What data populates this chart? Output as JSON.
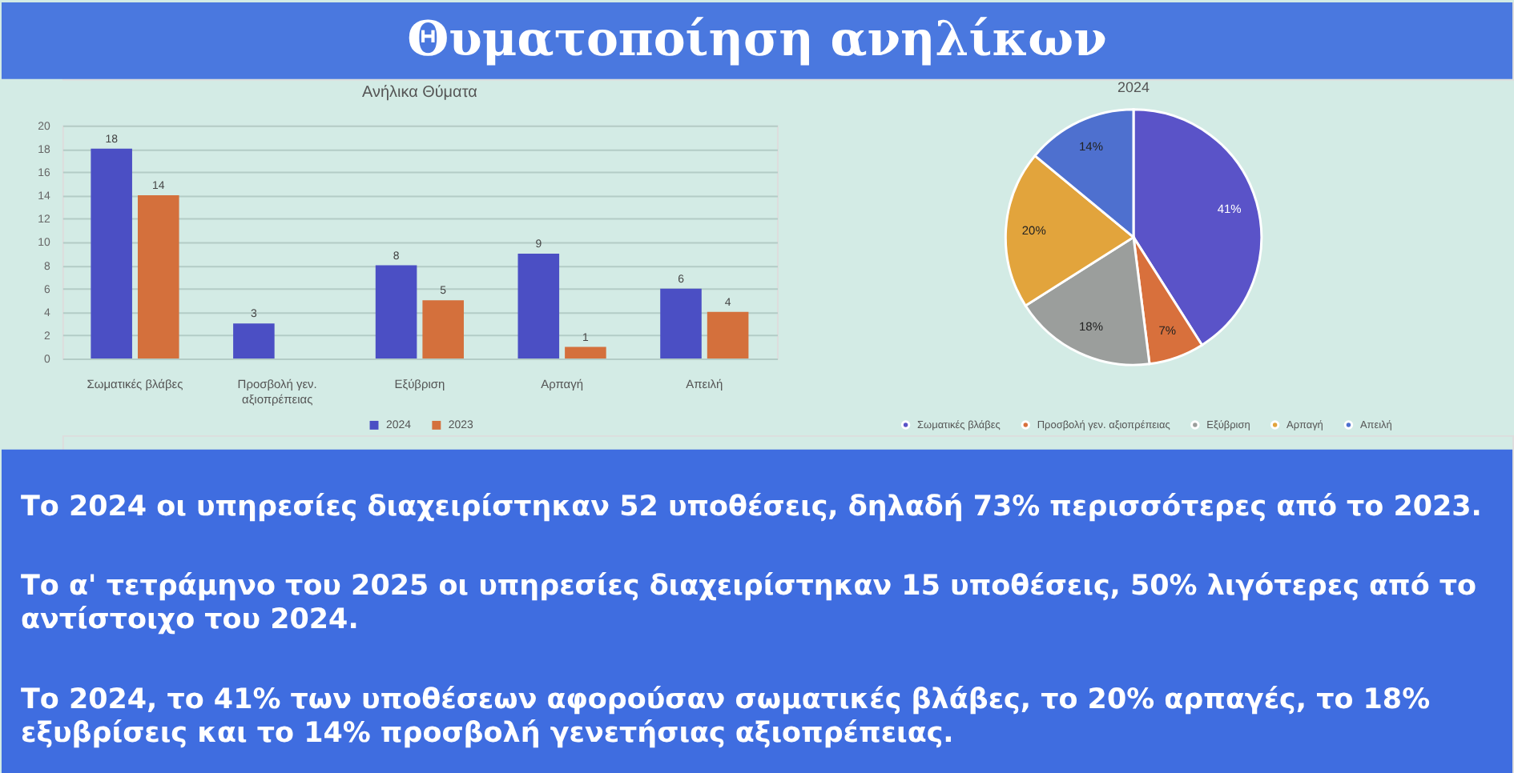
{
  "chart_data": [
    {
      "type": "other",
      "title": "Θυματοποίηση ανηλίκων"
    },
    {
      "type": "bar",
      "title": "Ανήλικα Θύματα",
      "categories": [
        "Σωματικές βλάβες",
        "Προσβολή γεν. αξιοπρέπειας",
        "Εξύβριση",
        "Αρπαγή",
        "Απειλή"
      ],
      "series": [
        {
          "name": "2024",
          "color": "#4b4fc4",
          "values": [
            18,
            3,
            8,
            9,
            6
          ]
        },
        {
          "name": "2023",
          "color": "#d4703c",
          "values": [
            14,
            null,
            5,
            1,
            4
          ]
        }
      ],
      "ylim": [
        0,
        20
      ],
      "yticks": [
        0,
        2,
        4,
        6,
        8,
        10,
        12,
        14,
        16,
        18,
        20
      ],
      "grid": "y",
      "legend": "bottom",
      "data_labels": true
    },
    {
      "type": "pie",
      "title": "2024",
      "categories": [
        "Σωματικές βλάβες",
        "Προσβολή γεν. αξιοπρέπειας",
        "Εξύβριση",
        "Αρπαγή",
        "Απειλή"
      ],
      "values": [
        41,
        7,
        18,
        20,
        14
      ],
      "colors": [
        "#5a53c8",
        "#d8703c",
        "#9b9e9c",
        "#e2a43c",
        "#4e70cf"
      ],
      "value_labels": [
        "41%",
        "7%",
        "18%",
        "20%",
        "14%"
      ],
      "legend": "bottom"
    },
    {
      "type": "other",
      "annotations": [
        "Το 2024 οι υπηρεσίες διαχειρίστηκαν 52 υποθέσεις, δηλαδή 73% περισσότερες από το 2023.",
        "Το α' τετράμηνο του 2025 οι υπηρεσίες διαχειρίστηκαν 15 υποθέσεις, 50% λιγότερες από το αντίστοιχο του 2024.",
        "Το 2024, το 41% των υποθέσεων αφορούσαν σωματικές βλάβες, το 20% αρπαγές, το 18% εξυβρίσεις και το 14% προσβολή γενετήσιας αξιοπρέπειας."
      ]
    }
  ]
}
